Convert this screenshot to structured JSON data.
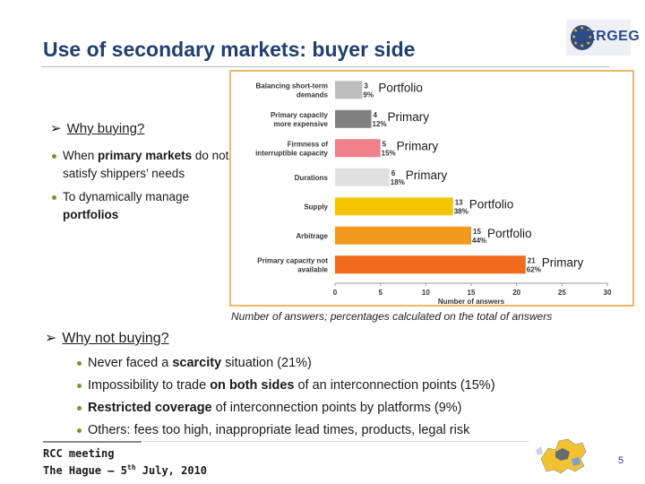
{
  "slide": {
    "title": "Use of secondary markets: buyer side",
    "logo_text": "ERGEG",
    "page_number": "5",
    "footer_line1": "RCC meeting",
    "footer_line2_pre": "The Hague – 5",
    "footer_line2_sup": "th",
    "footer_line2_post": " July, 2010"
  },
  "why_buying": {
    "heading": "Why buying?",
    "bullet1_pre": "When ",
    "bullet1_bold": "primary markets",
    "bullet1_post": " do not  satisfy shippers’ needs",
    "bullet2_pre": "To dynamically manage ",
    "bullet2_bold": "portfolios"
  },
  "why_not_buying": {
    "heading": "Why not buying?",
    "items": [
      {
        "pre": "Never faced a ",
        "bold": "scarcity",
        "post": " situation (21%)",
        "bold2": "",
        "post2": ""
      },
      {
        "pre": "Impossibility to trade ",
        "bold": "on both sides",
        "post": " of an interconnection points (15%)",
        "bold2": "",
        "post2": ""
      },
      {
        "pre": "",
        "bold": "Restricted coverage",
        "post": " of interconnection points by platforms (9%)",
        "bold2": "",
        "post2": ""
      },
      {
        "pre": "Others: fees too high, inappropriate lead times, products, legal risk",
        "bold": "",
        "post": "",
        "bold2": "",
        "post2": ""
      }
    ]
  },
  "chart_note": "Number of answers; percentages calculated on the total of answers",
  "chart_data": {
    "type": "bar",
    "orientation": "horizontal",
    "categories": [
      "Balancing short-term demands",
      "Primary capacity more expensive",
      "Firmness of interruptible capacity",
      "Durations",
      "Supply",
      "Arbitrage",
      "Primary capacity not available"
    ],
    "values": [
      3,
      4,
      5,
      6,
      13,
      15,
      21
    ],
    "percent_labels": [
      "9%",
      "12%",
      "15%",
      "18%",
      "38%",
      "44%",
      "62%"
    ],
    "annotations": [
      "Portfolio",
      "Primary",
      "Primary",
      "Primary",
      "Portfolio",
      "Portfolio",
      "Primary"
    ],
    "colors": [
      "#bdbdbd",
      "#808080",
      "#f0808a",
      "#e0e0e0",
      "#f5c400",
      "#f39a1e",
      "#f26a1b"
    ],
    "xlabel": "Number of answers",
    "xlim": [
      0,
      30
    ],
    "xticks": [
      0,
      5,
      10,
      15,
      20,
      25,
      30
    ],
    "grid": false,
    "legend": "none"
  }
}
